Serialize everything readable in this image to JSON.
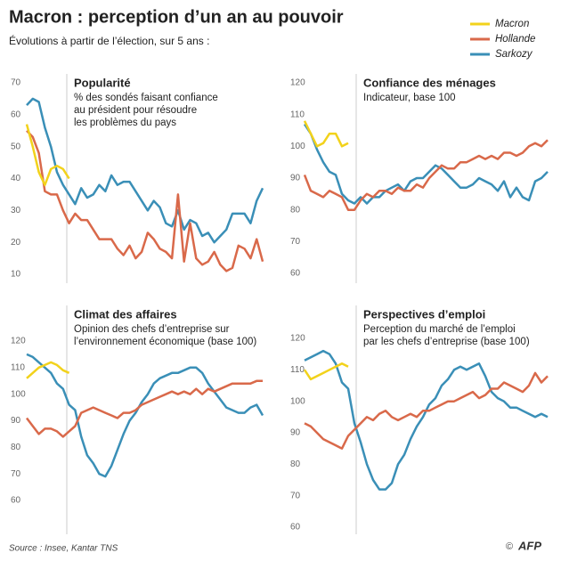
{
  "title": "Macron : perception d’un an au pouvoir",
  "subtitle": "Évolutions à partir de l’élection, sur 5 ans :",
  "source": "Source : Insee, Kantar TNS",
  "credit": "©",
  "logo": "AFP",
  "chart_data": [
    {
      "type": "line",
      "title": "Popularité",
      "subtitle": [
        "% des sondés faisant confiance",
        "au président pour résoudre",
        "les problèmes du pays"
      ],
      "ylim": [
        10,
        70
      ],
      "yticks": [
        10,
        20,
        30,
        40,
        50,
        60,
        70
      ],
      "series": [
        {
          "name": "Macron",
          "color": "#f2d21b",
          "values": [
            57,
            50,
            42,
            38,
            43,
            44,
            43,
            40
          ]
        },
        {
          "name": "Hollande",
          "color": "#d9694a",
          "values": [
            55,
            53,
            48,
            36,
            35,
            35,
            30,
            26,
            29,
            27,
            27,
            24,
            21,
            21,
            21,
            18,
            16,
            19,
            15,
            17,
            23,
            21,
            18,
            17,
            15,
            35,
            14,
            26,
            15,
            13,
            14,
            17,
            13,
            11,
            12,
            19,
            18,
            15,
            21,
            14
          ]
        },
        {
          "name": "Sarkozy",
          "color": "#3a8fb7",
          "values": [
            63,
            65,
            64,
            56,
            50,
            42,
            38,
            35,
            32,
            37,
            34,
            35,
            38,
            36,
            41,
            38,
            39,
            39,
            36,
            33,
            30,
            33,
            31,
            26,
            25,
            30,
            24,
            27,
            26,
            22,
            23,
            20,
            22,
            24,
            29,
            29,
            29,
            26,
            33,
            37
          ]
        }
      ]
    },
    {
      "type": "line",
      "title": "Confiance des ménages",
      "subtitle": [
        "Indicateur, base 100"
      ],
      "ylim": [
        60,
        120
      ],
      "yticks": [
        60,
        70,
        80,
        90,
        100,
        110,
        120
      ],
      "series": [
        {
          "name": "Macron",
          "color": "#f2d21b",
          "values": [
            108,
            104,
            100,
            101,
            104,
            104,
            100,
            101
          ]
        },
        {
          "name": "Hollande",
          "color": "#d9694a",
          "values": [
            91,
            86,
            85,
            84,
            86,
            85,
            84,
            80,
            80,
            83,
            85,
            84,
            86,
            86,
            85,
            87,
            86,
            86,
            88,
            87,
            90,
            92,
            94,
            93,
            93,
            95,
            95,
            96,
            97,
            96,
            97,
            96,
            98,
            98,
            97,
            98,
            100,
            101,
            100,
            102
          ]
        },
        {
          "name": "Sarkozy",
          "color": "#3a8fb7",
          "values": [
            107,
            104,
            99,
            95,
            92,
            91,
            85,
            83,
            82,
            84,
            82,
            84,
            84,
            86,
            87,
            88,
            86,
            89,
            90,
            90,
            92,
            94,
            93,
            91,
            89,
            87,
            87,
            88,
            90,
            89,
            88,
            86,
            89,
            84,
            87,
            84,
            83,
            89,
            90,
            92
          ]
        }
      ]
    },
    {
      "type": "line",
      "title": "Climat des affaires",
      "subtitle": [
        "Opinion des chefs d’entreprise sur",
        "l’environnement économique (base 100)"
      ],
      "ylim": [
        60,
        120
      ],
      "yticks": [
        60,
        70,
        80,
        90,
        100,
        110,
        120
      ],
      "series": [
        {
          "name": "Macron",
          "color": "#f2d21b",
          "values": [
            106,
            108,
            110,
            111,
            112,
            111,
            109,
            108
          ]
        },
        {
          "name": "Hollande",
          "color": "#d9694a",
          "values": [
            91,
            88,
            85,
            87,
            87,
            86,
            84,
            86,
            88,
            93,
            94,
            95,
            94,
            93,
            92,
            91,
            93,
            93,
            94,
            96,
            97,
            98,
            99,
            100,
            101,
            100,
            101,
            100,
            102,
            100,
            102,
            101,
            102,
            103,
            104,
            104,
            104,
            104,
            105,
            105
          ]
        },
        {
          "name": "Sarkozy",
          "color": "#3a8fb7",
          "values": [
            115,
            114,
            112,
            110,
            108,
            104,
            102,
            96,
            94,
            84,
            77,
            74,
            70,
            69,
            73,
            79,
            85,
            90,
            93,
            97,
            100,
            104,
            106,
            107,
            108,
            108,
            109,
            110,
            110,
            108,
            104,
            101,
            98,
            95,
            94,
            93,
            93,
            95,
            96,
            92
          ]
        }
      ]
    },
    {
      "type": "line",
      "title": "Perspectives d’emploi",
      "subtitle": [
        "Perception du marché de l’emploi",
        "par les chefs d’entreprise (base 100)"
      ],
      "ylim": [
        60,
        120
      ],
      "yticks": [
        60,
        70,
        80,
        90,
        100,
        110,
        120
      ],
      "series": [
        {
          "name": "Macron",
          "color": "#f2d21b",
          "values": [
            110,
            107,
            108,
            109,
            110,
            111,
            112,
            111
          ]
        },
        {
          "name": "Hollande",
          "color": "#d9694a",
          "values": [
            93,
            92,
            90,
            88,
            87,
            86,
            85,
            89,
            91,
            93,
            95,
            94,
            96,
            97,
            95,
            94,
            95,
            96,
            95,
            97,
            97,
            98,
            99,
            100,
            100,
            101,
            102,
            103,
            101,
            102,
            104,
            104,
            106,
            105,
            104,
            103,
            105,
            109,
            106,
            108
          ]
        },
        {
          "name": "Sarkozy",
          "color": "#3a8fb7",
          "values": [
            113,
            114,
            115,
            116,
            115,
            112,
            106,
            104,
            93,
            87,
            80,
            75,
            72,
            72,
            74,
            80,
            83,
            88,
            92,
            95,
            99,
            101,
            105,
            107,
            110,
            111,
            110,
            111,
            112,
            108,
            103,
            101,
            100,
            98,
            98,
            97,
            96,
            95,
            96,
            95
          ]
        }
      ]
    }
  ]
}
